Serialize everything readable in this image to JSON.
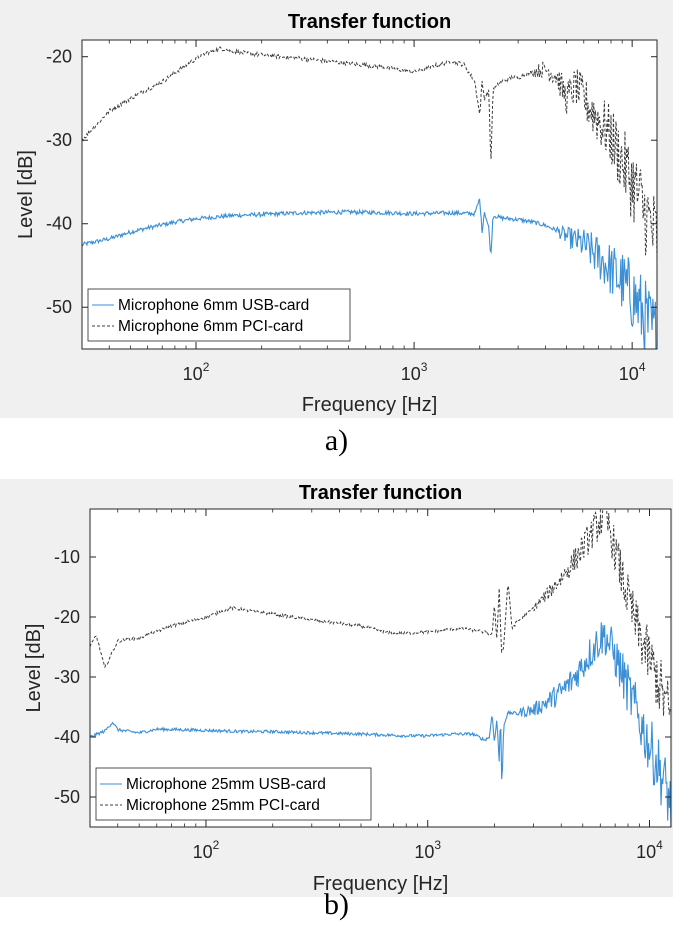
{
  "figure_captions": [
    "a)",
    "b)"
  ],
  "chart_data": [
    {
      "type": "line",
      "title": "Transfer function",
      "xlabel": "Frequency [Hz]",
      "ylabel": "Level [dB]",
      "xscale": "log",
      "xlim": [
        30,
        13000
      ],
      "ylim": [
        -55,
        -18
      ],
      "xticks": [
        100,
        1000,
        10000
      ],
      "xtick_labels": [
        {
          "base": "10",
          "exp": "2"
        },
        {
          "base": "10",
          "exp": "3"
        },
        {
          "base": "10",
          "exp": "4"
        }
      ],
      "yticks": [
        -50,
        -40,
        -30,
        -20
      ],
      "ytick_labels": [
        "-50",
        "-40",
        "-30",
        "-20"
      ],
      "grid": false,
      "legend_position": "bottom-left",
      "series": [
        {
          "name": "Microphone 6mm USB-card",
          "color": "#3a8fd6",
          "style": "solid",
          "points": [
            [
              30,
              -42.5
            ],
            [
              40,
              -41.8
            ],
            [
              50,
              -41
            ],
            [
              60,
              -40.5
            ],
            [
              80,
              -39.8
            ],
            [
              100,
              -39.4
            ],
            [
              150,
              -39
            ],
            [
              200,
              -38.9
            ],
            [
              300,
              -38.7
            ],
            [
              500,
              -38.6
            ],
            [
              800,
              -38.7
            ],
            [
              1000,
              -38.8
            ],
            [
              1500,
              -38.7
            ],
            [
              1900,
              -38.8
            ],
            [
              2000,
              -37
            ],
            [
              2050,
              -41
            ],
            [
              2100,
              -38.5
            ],
            [
              2200,
              -40.5
            ],
            [
              2250,
              -44
            ],
            [
              2300,
              -39
            ],
            [
              2500,
              -39.3
            ],
            [
              3000,
              -39.5
            ],
            [
              3500,
              -39.8
            ],
            [
              4000,
              -40.2
            ],
            [
              4500,
              -40.8
            ],
            [
              5000,
              -41.5
            ],
            [
              6000,
              -42.5
            ],
            [
              7000,
              -44
            ],
            [
              8000,
              -45.5
            ],
            [
              9000,
              -47
            ],
            [
              10000,
              -48.5
            ],
            [
              11000,
              -50.5
            ],
            [
              12000,
              -52.5
            ],
            [
              13000,
              -54
            ]
          ],
          "noisy_above_hz": 4500
        },
        {
          "name": "Microphone 6mm PCI-card",
          "color": "#3c3c3c",
          "style": "dashed",
          "points": [
            [
              30,
              -30
            ],
            [
              40,
              -26.5
            ],
            [
              50,
              -25
            ],
            [
              70,
              -23
            ],
            [
              90,
              -21
            ],
            [
              110,
              -19.6
            ],
            [
              130,
              -19
            ],
            [
              160,
              -19.5
            ],
            [
              200,
              -19.8
            ],
            [
              300,
              -20.2
            ],
            [
              500,
              -20.8
            ],
            [
              700,
              -21.2
            ],
            [
              1000,
              -21.8
            ],
            [
              1200,
              -21.2
            ],
            [
              1500,
              -20.5
            ],
            [
              1700,
              -21
            ],
            [
              1900,
              -23
            ],
            [
              2000,
              -27
            ],
            [
              2050,
              -23
            ],
            [
              2100,
              -25
            ],
            [
              2200,
              -24
            ],
            [
              2250,
              -33
            ],
            [
              2300,
              -24
            ],
            [
              2500,
              -23
            ],
            [
              2800,
              -22.5
            ],
            [
              3000,
              -22.5
            ],
            [
              3500,
              -21.8
            ],
            [
              4000,
              -21.5
            ],
            [
              4500,
              -22.2
            ],
            [
              5000,
              -25
            ],
            [
              5500,
              -23.5
            ],
            [
              6000,
              -25
            ],
            [
              7000,
              -27.5
            ],
            [
              8000,
              -29.5
            ],
            [
              9000,
              -32.5
            ],
            [
              10000,
              -35
            ],
            [
              11000,
              -37.5
            ],
            [
              12000,
              -40
            ],
            [
              13000,
              -42
            ]
          ],
          "noisy_above_hz": 3500
        }
      ]
    },
    {
      "type": "line",
      "title": "Transfer function",
      "xlabel": "Frequency [Hz]",
      "ylabel": "Level [dB]",
      "xscale": "log",
      "xlim": [
        30,
        12500
      ],
      "ylim": [
        -55,
        -2
      ],
      "xticks": [
        100,
        1000,
        10000
      ],
      "xtick_labels": [
        {
          "base": "10",
          "exp": "2"
        },
        {
          "base": "10",
          "exp": "3"
        },
        {
          "base": "10",
          "exp": "4"
        }
      ],
      "yticks": [
        -50,
        -40,
        -30,
        -20,
        -10
      ],
      "ytick_labels": [
        "-50",
        "-40",
        "-30",
        "-20",
        "-10"
      ],
      "grid": false,
      "legend_position": "bottom-left",
      "series": [
        {
          "name": "Microphone 25mm USB-card",
          "color": "#3a8fd6",
          "style": "solid",
          "points": [
            [
              30,
              -40
            ],
            [
              35,
              -39
            ],
            [
              38,
              -37.5
            ],
            [
              40,
              -38.8
            ],
            [
              50,
              -39.3
            ],
            [
              60,
              -38.7
            ],
            [
              80,
              -38.8
            ],
            [
              100,
              -38.9
            ],
            [
              150,
              -39.1
            ],
            [
              200,
              -39.1
            ],
            [
              300,
              -39.3
            ],
            [
              500,
              -39.5
            ],
            [
              800,
              -39.8
            ],
            [
              1000,
              -39.8
            ],
            [
              1300,
              -39.5
            ],
            [
              1600,
              -39.5
            ],
            [
              1800,
              -40.5
            ],
            [
              1900,
              -40
            ],
            [
              1950,
              -36
            ],
            [
              2000,
              -41
            ],
            [
              2050,
              -37
            ],
            [
              2100,
              -44
            ],
            [
              2130,
              -36
            ],
            [
              2160,
              -49
            ],
            [
              2200,
              -38
            ],
            [
              2300,
              -36
            ],
            [
              2500,
              -36
            ],
            [
              3000,
              -35.5
            ],
            [
              3500,
              -34
            ],
            [
              4000,
              -32.5
            ],
            [
              4500,
              -30.5
            ],
            [
              5000,
              -28
            ],
            [
              5500,
              -25.5
            ],
            [
              6000,
              -23.5
            ],
            [
              6300,
              -23
            ],
            [
              7000,
              -26.5
            ],
            [
              8000,
              -32
            ],
            [
              9000,
              -37
            ],
            [
              10000,
              -41.5
            ],
            [
              11000,
              -45
            ],
            [
              12000,
              -49
            ],
            [
              12500,
              -52
            ]
          ],
          "noisy_above_hz": 2500
        },
        {
          "name": "Microphone 25mm PCI-card",
          "color": "#3c3c3c",
          "style": "dashed",
          "points": [
            [
              30,
              -25
            ],
            [
              32,
              -23
            ],
            [
              35,
              -28.5
            ],
            [
              40,
              -24
            ],
            [
              50,
              -23.5
            ],
            [
              70,
              -21.5
            ],
            [
              100,
              -20
            ],
            [
              130,
              -18.5
            ],
            [
              160,
              -19
            ],
            [
              200,
              -19.5
            ],
            [
              300,
              -20.5
            ],
            [
              500,
              -21.5
            ],
            [
              700,
              -22.8
            ],
            [
              1000,
              -22.5
            ],
            [
              1300,
              -22
            ],
            [
              1500,
              -22
            ],
            [
              1800,
              -22.5
            ],
            [
              1950,
              -23
            ],
            [
              2000,
              -18
            ],
            [
              2050,
              -24
            ],
            [
              2100,
              -15
            ],
            [
              2150,
              -26
            ],
            [
              2200,
              -25
            ],
            [
              2300,
              -14
            ],
            [
              2400,
              -22
            ],
            [
              2500,
              -21
            ],
            [
              3000,
              -18.5
            ],
            [
              3500,
              -16
            ],
            [
              4000,
              -13.5
            ],
            [
              4500,
              -11
            ],
            [
              5000,
              -8.5
            ],
            [
              5500,
              -6
            ],
            [
              6000,
              -4
            ],
            [
              6300,
              -3.5
            ],
            [
              6700,
              -6
            ],
            [
              7000,
              -9
            ],
            [
              8000,
              -17
            ],
            [
              9000,
              -23
            ],
            [
              10000,
              -27
            ],
            [
              11000,
              -31
            ],
            [
              12000,
              -35
            ],
            [
              12500,
              -37
            ]
          ],
          "noisy_above_hz": 3000
        }
      ]
    }
  ]
}
